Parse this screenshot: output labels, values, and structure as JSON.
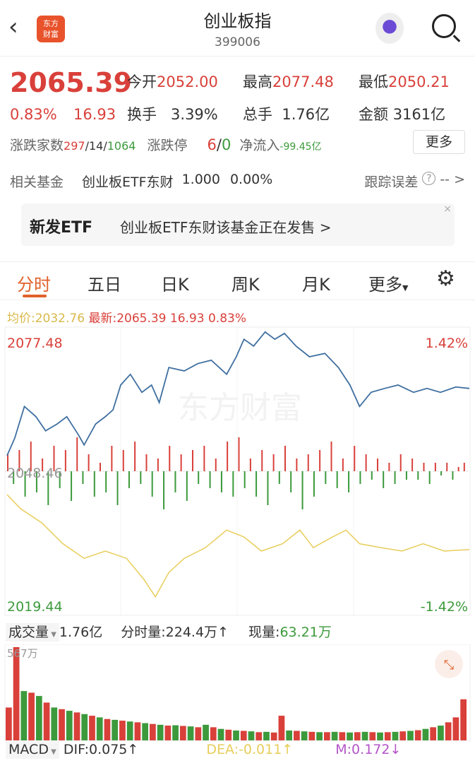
{
  "header": {
    "title": "创业板指",
    "code": "399006",
    "logo_text": "东方财富",
    "back_icon": "chevron-left-icon",
    "search_icon": "search-icon"
  },
  "quote": {
    "price": "2065.39",
    "change_pct": "0.83%",
    "change": "16.93",
    "open_label": "今开",
    "open": "2052.00",
    "high_label": "最高",
    "high": "2077.48",
    "low_label": "最低",
    "low": "2050.21",
    "turnover_label": "换手",
    "turnover": "3.39%",
    "volume_label": "总手",
    "volume": "1.76亿",
    "amount_label": "金额",
    "amount": "3161亿",
    "breadth_label": "涨跌家数",
    "up": "297",
    "flat": "/14/",
    "down": "1064",
    "limit_label": "涨跌停",
    "limit_up": "6",
    "limit_sep": "/",
    "limit_down": "0",
    "inflow_label": "净流入",
    "inflow": "-99.45亿",
    "more": "更多"
  },
  "fund": {
    "label": "相关基金",
    "name": "创业板ETF东财",
    "nav": "1.000",
    "pct": "0.00%",
    "tracking_label": "跟踪误差",
    "tracking_value": "-- >"
  },
  "banner": {
    "tag": "新发ETF",
    "text": "创业板ETF东财该基金正在发售 >"
  },
  "tabs": [
    {
      "label": "分时",
      "active": true
    },
    {
      "label": "五日"
    },
    {
      "label": "日K"
    },
    {
      "label": "周K"
    },
    {
      "label": "月K"
    },
    {
      "label": "更多"
    }
  ],
  "info": {
    "avg_label": "均价:",
    "avg": "2032.76",
    "latest_label": "最新:",
    "latest": "2065.39",
    "change": "16.93",
    "pct": "0.83%"
  },
  "colors": {
    "up": "#d9403a",
    "down": "#3c9a3c",
    "price_line": "#3f6fa0",
    "avg_line": "#e8cd5a",
    "accent": "#e0602b",
    "macd_m": "#b455c8"
  },
  "chart_data": {
    "type": "line",
    "y_top": "2077.48",
    "y_mid": "2048.46",
    "y_bottom": "2019.44",
    "pct_top": "1.42%",
    "pct_bottom": "-1.42%",
    "ylim": [
      2019.44,
      2077.48
    ],
    "xlim": [
      0,
      240
    ],
    "price": [
      [
        0,
        2052.1
      ],
      [
        4,
        2055.7
      ],
      [
        9,
        2062.2
      ],
      [
        15,
        2060.1
      ],
      [
        20,
        2057.2
      ],
      [
        26,
        2058.6
      ],
      [
        31,
        2060.1
      ],
      [
        37,
        2056.4
      ],
      [
        40,
        2054.3
      ],
      [
        46,
        2058.6
      ],
      [
        51,
        2060.1
      ],
      [
        55,
        2061.5
      ],
      [
        59,
        2066.6
      ],
      [
        64,
        2068.8
      ],
      [
        70,
        2065.1
      ],
      [
        75,
        2066.6
      ],
      [
        79,
        2063.0
      ],
      [
        84,
        2070.2
      ],
      [
        92,
        2069.5
      ],
      [
        99,
        2071.0
      ],
      [
        106,
        2071.7
      ],
      [
        114,
        2068.8
      ],
      [
        119,
        2072.4
      ],
      [
        123,
        2076.0
      ],
      [
        128,
        2074.6
      ],
      [
        134,
        2077.5
      ],
      [
        139,
        2076.0
      ],
      [
        144,
        2077.2
      ],
      [
        150,
        2074.6
      ],
      [
        157,
        2072.4
      ],
      [
        165,
        2073.1
      ],
      [
        172,
        2070.2
      ],
      [
        178,
        2066.6
      ],
      [
        183,
        2062.2
      ],
      [
        189,
        2065.1
      ],
      [
        196,
        2065.9
      ],
      [
        203,
        2066.6
      ],
      [
        211,
        2065.1
      ],
      [
        218,
        2065.9
      ],
      [
        225,
        2065.1
      ],
      [
        233,
        2066.2
      ],
      [
        240,
        2065.9
      ]
    ],
    "avg": [
      [
        0,
        2044.1
      ],
      [
        7,
        2041.2
      ],
      [
        18,
        2038.3
      ],
      [
        29,
        2034.0
      ],
      [
        40,
        2031.0
      ],
      [
        51,
        2032.5
      ],
      [
        62,
        2031.0
      ],
      [
        71,
        2026.7
      ],
      [
        77,
        2023.1
      ],
      [
        84,
        2028.1
      ],
      [
        92,
        2031.0
      ],
      [
        103,
        2033.2
      ],
      [
        114,
        2036.8
      ],
      [
        123,
        2035.4
      ],
      [
        132,
        2032.5
      ],
      [
        143,
        2034.0
      ],
      [
        152,
        2036.8
      ],
      [
        159,
        2033.2
      ],
      [
        169,
        2035.4
      ],
      [
        176,
        2036.8
      ],
      [
        183,
        2034.0
      ],
      [
        194,
        2033.2
      ],
      [
        205,
        2032.5
      ],
      [
        216,
        2034.0
      ],
      [
        227,
        2032.5
      ],
      [
        240,
        2032.8
      ]
    ],
    "macd_bars": [
      4,
      -3,
      5,
      -6,
      7,
      -5,
      3,
      -8,
      6,
      -4,
      5,
      -7,
      8,
      -3,
      4,
      -6,
      2,
      -5,
      6,
      -8,
      5,
      -4,
      7,
      -3,
      4,
      -6,
      3,
      -9,
      6,
      -5,
      4,
      -7,
      5,
      -3,
      6,
      -4,
      3,
      -5,
      7,
      -6,
      8,
      -4,
      3,
      -6,
      5,
      -8,
      4,
      -3,
      6,
      -5,
      3,
      -9,
      4,
      -6,
      5,
      -3,
      7,
      -4,
      3,
      -5,
      6,
      -3,
      4,
      -2,
      3,
      -4,
      2,
      -3,
      4,
      -2,
      3,
      -2,
      2,
      -3,
      2,
      -1,
      2,
      -2,
      1,
      2
    ]
  },
  "volume": {
    "label": "成交量",
    "total": "1.76亿",
    "minute_label": "分时量:",
    "minute": "224.4万",
    "minute_arrow": "↑",
    "current_label": "现量:",
    "current": "63.21万",
    "max_label": "567万",
    "bars": [
      200,
      567,
      -300,
      290,
      -270,
      230,
      -200,
      190,
      -180,
      170,
      -160,
      150,
      -140,
      130,
      -125,
      120,
      -115,
      110,
      -105,
      100,
      -95,
      90,
      -92,
      88,
      -85,
      80,
      -95,
      80,
      -70,
      65,
      -60,
      58,
      -55,
      50,
      -52,
      48,
      150,
      -60,
      58,
      -55,
      52,
      -50,
      50,
      -52,
      50,
      -48,
      50,
      -52,
      50,
      -48,
      50,
      -52,
      55,
      -58,
      62,
      -70,
      80,
      -90,
      110,
      140,
      250
    ]
  },
  "macd": {
    "label": "MACD",
    "dif": "DIF:0.075↑",
    "dea": "DEA:-0.011↑",
    "m": "M:0.172↓"
  }
}
